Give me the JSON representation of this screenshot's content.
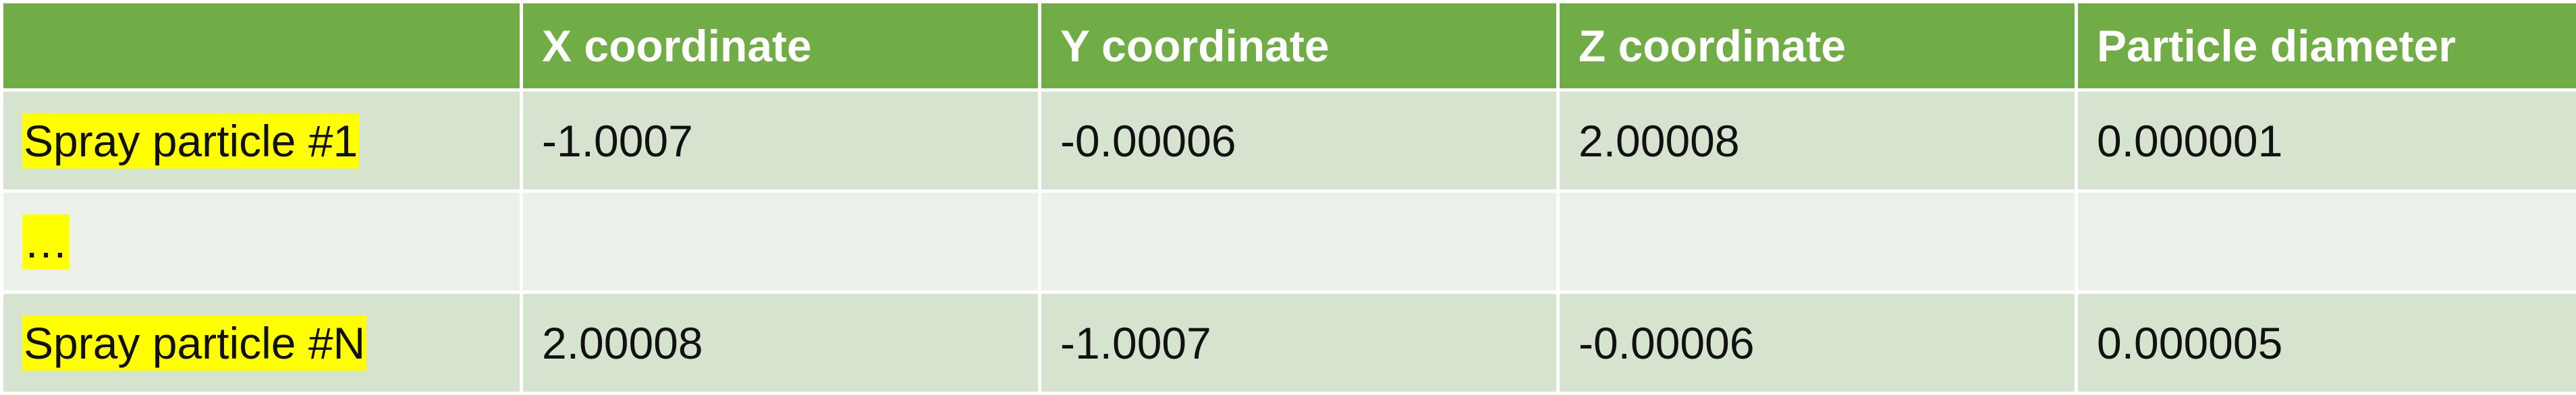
{
  "table": {
    "headers": [
      "",
      "X coordinate",
      "Y coordinate",
      "Z coordinate",
      "Particle diameter"
    ],
    "rows": [
      {
        "label": "Spray particle #1",
        "cells": [
          "-1.0007",
          "-0.00006",
          "2.00008",
          "0.000001"
        ]
      },
      {
        "label": "…",
        "cells": [
          "",
          "",
          "",
          ""
        ]
      },
      {
        "label": "Spray particle #N",
        "cells": [
          "2.00008",
          "-1.0007",
          "-0.00006",
          "0.000005"
        ]
      }
    ]
  },
  "colors": {
    "header_bg": "#70ad47",
    "header_text": "#ffffff",
    "row_odd_bg": "#d5e3cf",
    "row_even_bg": "#ebf1e9",
    "label_highlight": "#ffff00"
  }
}
